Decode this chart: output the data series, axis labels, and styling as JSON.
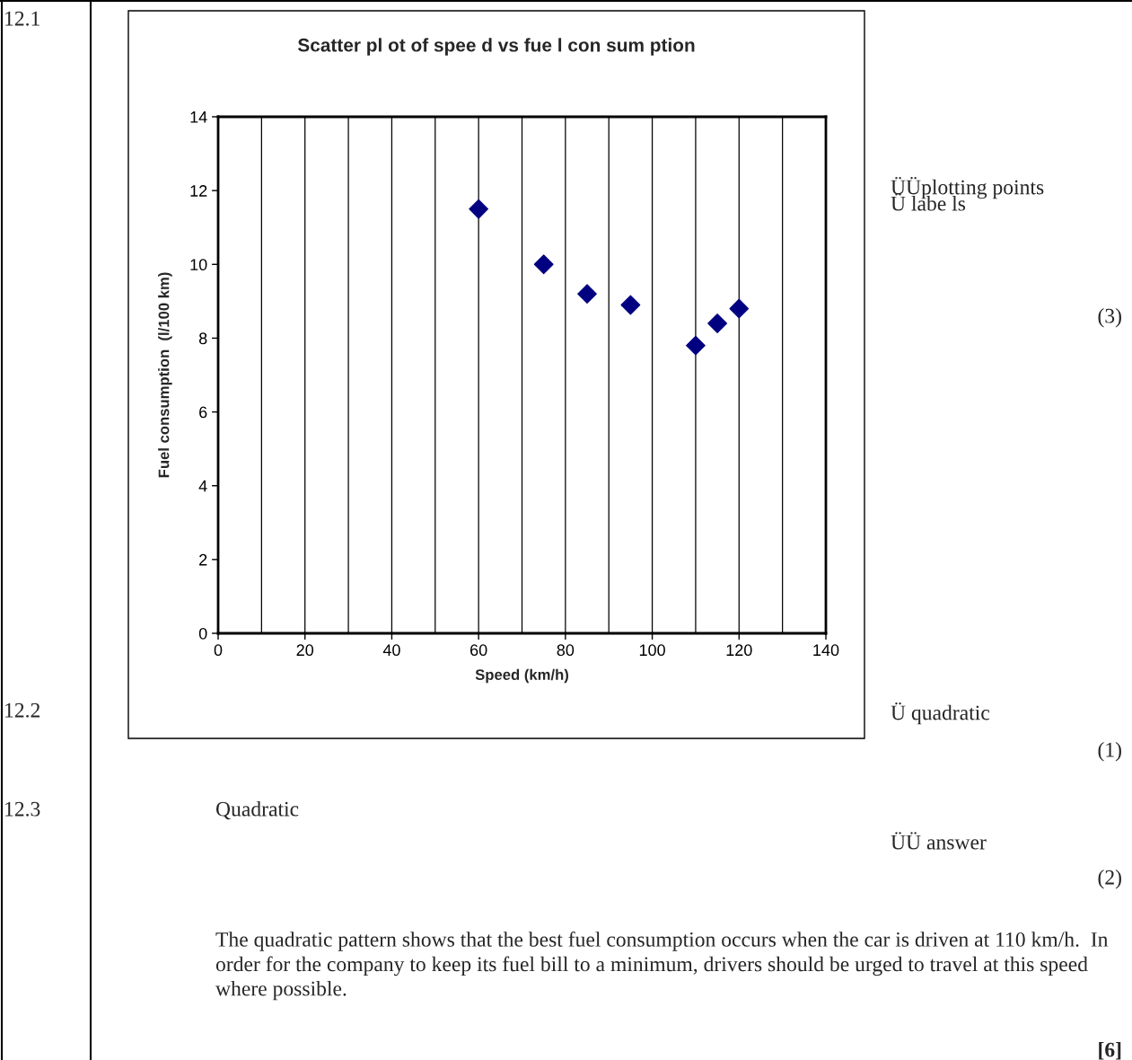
{
  "chart_data": {
    "type": "scatter",
    "title": "Scatter pl ot of spee d vs fue l con sum ption",
    "xlabel": "Speed (km/h)",
    "ylabel": "Fuel consumption  (l/100 km)",
    "x": [
      60,
      75,
      85,
      95,
      110,
      115,
      120
    ],
    "series": [
      {
        "color": "#000080",
        "values": [
          11.5,
          10,
          9.2,
          8.9,
          7.8,
          8.4,
          8.8
        ]
      }
    ],
    "xlim": [
      0,
      140
    ],
    "xticks": [
      0,
      20,
      40,
      60,
      80,
      100,
      120,
      140
    ],
    "ylim": [
      0,
      14
    ],
    "yticks": [
      0,
      2,
      4,
      6,
      8,
      10,
      12,
      14
    ],
    "grid": "x",
    "marker": "diamond",
    "annotations": [
      "12.1",
      "12.2",
      "12.3",
      "ÜÜplotting points",
      "Ü labe ls",
      "(3)",
      "Ü quadratic",
      "(1)",
      "Quadratic",
      "ÜÜ answer",
      "(2)",
      "The quadratic pattern shows that the best fuel consumption occurs when the car is driven at 110 km/h.  In order for the company to keep its fuel bill to a minimum, drivers should be urged to travel at this speed where possible.",
      "[6]"
    ]
  }
}
